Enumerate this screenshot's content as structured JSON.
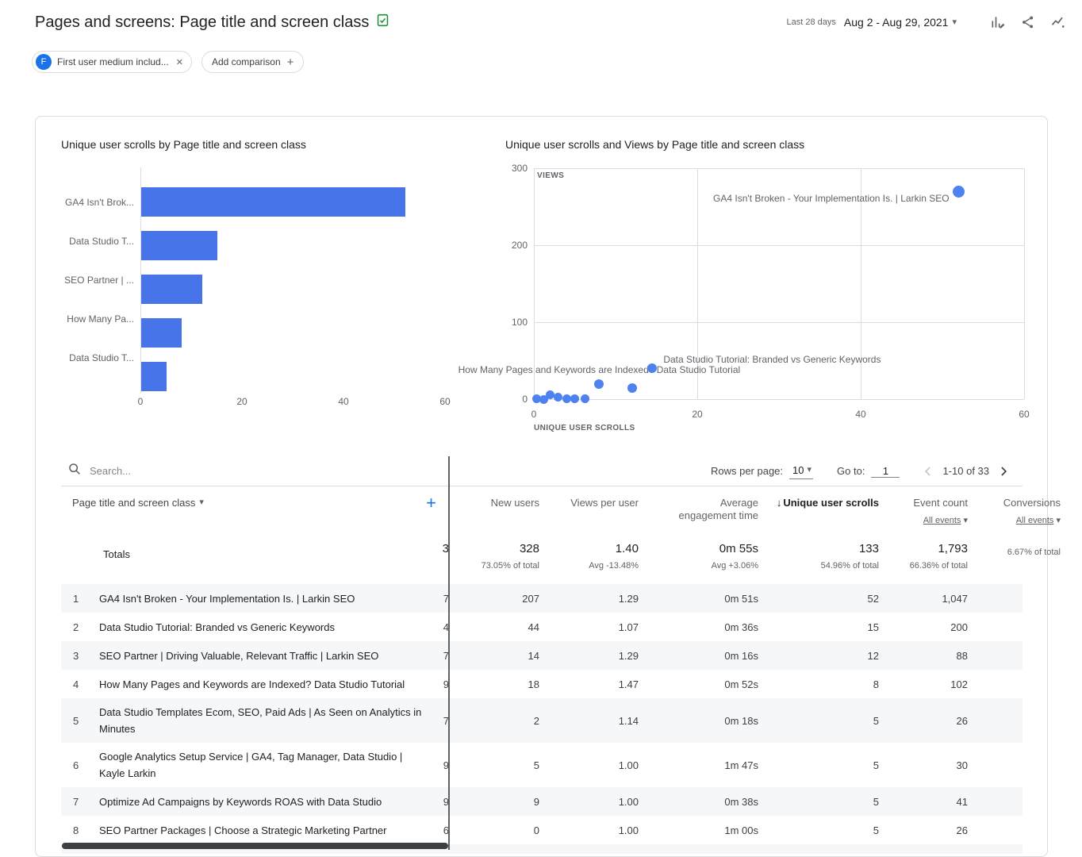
{
  "header": {
    "title": "Pages and screens: Page title and screen class",
    "date_preset": "Last 28 days",
    "date_range": "Aug 2 - Aug 29, 2021"
  },
  "filters": {
    "chip": {
      "initial": "F",
      "label": "First user medium includ..."
    },
    "add_comparison": "Add comparison"
  },
  "colors": {
    "accent_blue": "#1a73e8",
    "chart_blue": "#4774e8",
    "scatter_blue": "#4d82f0",
    "icon_green": "#1e8e3e",
    "text_primary": "#202124",
    "text_secondary": "#5f6368",
    "border": "#dadce0",
    "row_alt": "#f6f7f8"
  },
  "chart_data": [
    {
      "type": "bar",
      "title": "Unique user scrolls by Page title and screen class",
      "orientation": "horizontal",
      "categories": [
        "GA4 Isn't Brok...",
        "Data Studio T...",
        "SEO Partner | ...",
        "How Many Pa...",
        "Data Studio T..."
      ],
      "values": [
        52,
        15,
        12,
        8,
        5
      ],
      "xlabel": "",
      "ylabel": "",
      "xlim": [
        0,
        60
      ],
      "xticks": [
        0,
        20,
        40,
        60
      ],
      "grid": false,
      "color": "#4774e8"
    },
    {
      "type": "scatter",
      "title": "Unique user scrolls and Views by Page title and screen class",
      "xlabel": "UNIQUE USER SCROLLS",
      "ylabel": "VIEWS",
      "xlim": [
        0,
        60
      ],
      "ylim": [
        0,
        300
      ],
      "xticks": [
        0,
        20,
        40,
        60
      ],
      "yticks": [
        0,
        100,
        200,
        300
      ],
      "grid": true,
      "color": "#4d82f0",
      "points": [
        {
          "x": 52,
          "y": 270,
          "r": 7.5
        },
        {
          "x": 14.5,
          "y": 40,
          "r": 6
        },
        {
          "x": 12,
          "y": 14,
          "r": 6
        },
        {
          "x": 8,
          "y": 20,
          "r": 6
        },
        {
          "x": 0.3,
          "y": 1,
          "r": 5.5
        },
        {
          "x": 1.2,
          "y": 0,
          "r": 5.5
        },
        {
          "x": 2,
          "y": 6,
          "r": 5.5
        },
        {
          "x": 3,
          "y": 3,
          "r": 5.5
        },
        {
          "x": 4,
          "y": 1,
          "r": 5.5
        },
        {
          "x": 5,
          "y": 1,
          "r": 5.5
        },
        {
          "x": 6.3,
          "y": 1,
          "r": 5.5
        }
      ],
      "annotations": [
        {
          "text": "GA4 Isn't Broken - Your Implementation Is. | Larkin SEO",
          "x": 52,
          "y": 270,
          "place": "left"
        },
        {
          "text": "Data Studio Tutorial: Branded vs Generic Keywords",
          "x": 14.5,
          "y": 40,
          "place": "right"
        },
        {
          "text": "How Many Pages and Keywords are Indexed? Data Studio Tutorial",
          "x": 8,
          "y": 20,
          "place": "above"
        }
      ]
    }
  ],
  "table": {
    "search_placeholder": "Search...",
    "pagination": {
      "rows_per_page_label": "Rows per page:",
      "rows_per_page": "10",
      "goto_label": "Go to:",
      "goto_value": "1",
      "range": "1-10 of 33"
    },
    "columns": {
      "dimension": "Page title and screen class",
      "new_users": "New users",
      "views_per_user": "Views per user",
      "avg_engagement": "Average engagement time",
      "unique_scrolls": "Unique user scrolls",
      "event_count": "Event count",
      "conversions": "Conversions",
      "all_events": "All events",
      "sorted_by": "Unique user scrolls",
      "sort_direction": "descending"
    },
    "totals": {
      "label": "Totals",
      "clip": "3",
      "new_users": "328",
      "new_users_sub": "73.05% of total",
      "views_per_user": "1.40",
      "views_per_user_sub": "Avg -13.48%",
      "avg_engagement": "0m 55s",
      "avg_engagement_sub": "Avg +3.06%",
      "unique_scrolls": "133",
      "unique_scrolls_sub": "54.96% of total",
      "event_count": "1,793",
      "event_count_sub": "66.36% of total",
      "conversions_sub": "6.67% of total"
    },
    "rows": [
      {
        "num": "1",
        "title": "GA4 Isn't Broken - Your Implementation Is. | Larkin SEO",
        "clip": "7",
        "new_users": "207",
        "views_per_user": "1.29",
        "avg_engagement": "0m 51s",
        "unique_scrolls": "52",
        "event_count": "1,047",
        "conversions": ""
      },
      {
        "num": "2",
        "title": "Data Studio Tutorial: Branded vs Generic Keywords",
        "clip": "4",
        "new_users": "44",
        "views_per_user": "1.07",
        "avg_engagement": "0m 36s",
        "unique_scrolls": "15",
        "event_count": "200",
        "conversions": ""
      },
      {
        "num": "3",
        "title": "SEO Partner | Driving Valuable, Relevant Traffic | Larkin SEO",
        "clip": "7",
        "new_users": "14",
        "views_per_user": "1.29",
        "avg_engagement": "0m 16s",
        "unique_scrolls": "12",
        "event_count": "88",
        "conversions": ""
      },
      {
        "num": "4",
        "title": "How Many Pages and Keywords are Indexed? Data Studio Tutorial",
        "clip": "9",
        "new_users": "18",
        "views_per_user": "1.47",
        "avg_engagement": "0m 52s",
        "unique_scrolls": "8",
        "event_count": "102",
        "conversions": ""
      },
      {
        "num": "5",
        "title": "Data Studio Templates Ecom, SEO, Paid Ads | As Seen on Analytics in Minutes",
        "clip": "7",
        "new_users": "2",
        "views_per_user": "1.14",
        "avg_engagement": "0m 18s",
        "unique_scrolls": "5",
        "event_count": "26",
        "conversions": ""
      },
      {
        "num": "6",
        "title": "Google Analytics Setup Service | GA4, Tag Manager, Data Studio | Kayle Larkin",
        "clip": "9",
        "new_users": "5",
        "views_per_user": "1.00",
        "avg_engagement": "1m 47s",
        "unique_scrolls": "5",
        "event_count": "30",
        "conversions": ""
      },
      {
        "num": "7",
        "title": "Optimize Ad Campaigns by Keywords ROAS with Data Studio",
        "clip": "9",
        "new_users": "9",
        "views_per_user": "1.00",
        "avg_engagement": "0m 38s",
        "unique_scrolls": "5",
        "event_count": "41",
        "conversions": ""
      },
      {
        "num": "8",
        "title": "SEO Partner Packages | Choose a Strategic Marketing Partner",
        "clip": "6",
        "new_users": "0",
        "views_per_user": "1.00",
        "avg_engagement": "1m 00s",
        "unique_scrolls": "5",
        "event_count": "26",
        "conversions": ""
      }
    ]
  }
}
